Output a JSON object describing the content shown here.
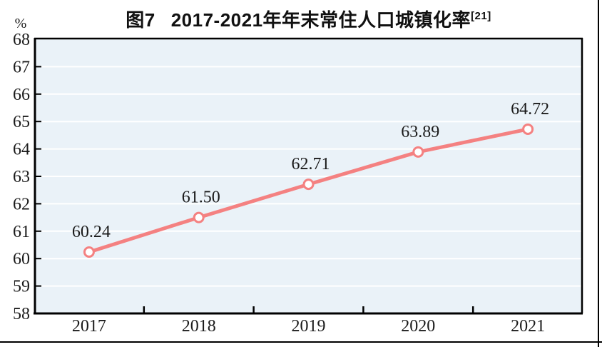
{
  "figure": {
    "background": "#ffffff",
    "rule_color": "#000000"
  },
  "title": {
    "prefix": "图7",
    "text": "2017-2021年年末常住人口城镇化率",
    "superscript": "[21]"
  },
  "chart_data": {
    "type": "line",
    "title": "图7 2017-2021年年末常住人口城镇化率[21]",
    "categories": [
      "2017",
      "2018",
      "2019",
      "2020",
      "2021"
    ],
    "series": [
      {
        "name": "年末常住人口城镇化率",
        "values": [
          60.24,
          61.5,
          62.71,
          63.89,
          64.72
        ],
        "point_labels": [
          "60.24",
          "61.50",
          "62.71",
          "63.89",
          "64.72"
        ]
      }
    ],
    "xlabel": "",
    "ylabel": "%",
    "ylim": [
      58,
      68
    ],
    "ytick_interval": 1,
    "yticks": [
      58,
      59,
      60,
      61,
      62,
      63,
      64,
      65,
      66,
      67,
      68
    ],
    "grid": true,
    "legend": "none",
    "style": {
      "line_color": "#f48181",
      "marker": "circle-open",
      "marker_fill": "#ffffff",
      "plot_background": "#eaf2f8",
      "gridline_color": "#ffffff",
      "axis_color": "#000000",
      "text_color": "#1a1a1a"
    }
  }
}
